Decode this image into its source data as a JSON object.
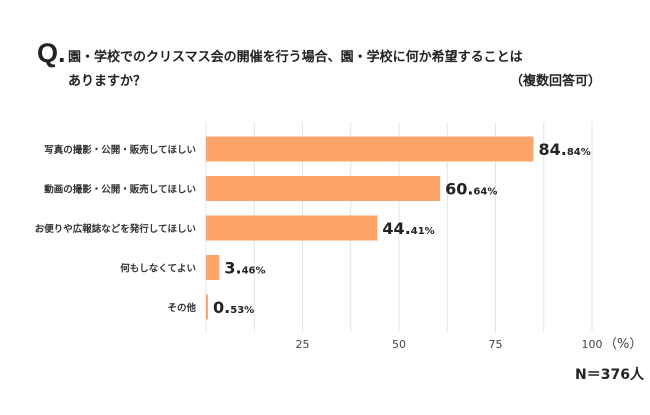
{
  "question": {
    "mark": "Q.",
    "line1": "園・学校でのクリスマス会の開催を行う場合、園・学校に何か希望することは",
    "line2": "ありますか？",
    "note": "（複数回答可）"
  },
  "sample_size": "N＝376人",
  "colors": {
    "bar": "#FCA46A",
    "grid": "#E4E4E4"
  },
  "chart_data": {
    "type": "bar",
    "orientation": "horizontal",
    "categories": [
      "写真の撮影・公開・販売してほしい",
      "動画の撮影・公開・販売してほしい",
      "お便りや広報誌などを発行してほしい",
      "何もしなくてよい",
      "その他"
    ],
    "values": [
      84.84,
      60.64,
      44.41,
      3.46,
      0.53
    ],
    "value_labels": [
      {
        "int": "84.",
        "dec": "84%"
      },
      {
        "int": "60.",
        "dec": "64%"
      },
      {
        "int": "44.",
        "dec": "41%"
      },
      {
        "int": "3.",
        "dec": "46%"
      },
      {
        "int": "0.",
        "dec": "53%"
      }
    ],
    "xlim": [
      0,
      100
    ],
    "xticks": [
      25,
      50,
      75,
      100
    ],
    "xtick_labels": [
      "25",
      "50",
      "75",
      "100"
    ],
    "x_unit": "（%）",
    "grid": true
  }
}
